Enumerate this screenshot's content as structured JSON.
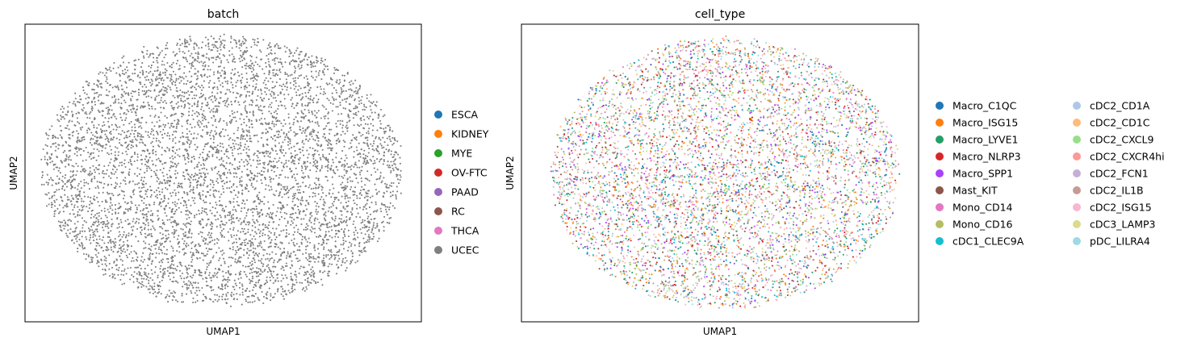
{
  "chart_data": [
    {
      "type": "scatter",
      "title": "batch",
      "xlabel": "UMAP1",
      "ylabel": "UMAP2",
      "ticks": false,
      "point_count": 6000,
      "legend_position": "right",
      "legend_columns": 1,
      "legend": [
        {
          "label": "ESCA",
          "color": "#1f77b4"
        },
        {
          "label": "KIDNEY",
          "color": "#ff7f0e"
        },
        {
          "label": "MYE",
          "color": "#2ca02c"
        },
        {
          "label": "OV-FTC",
          "color": "#d62728"
        },
        {
          "label": "PAAD",
          "color": "#9467bd"
        },
        {
          "label": "RC",
          "color": "#8c564b"
        },
        {
          "label": "THCA",
          "color": "#e377c2"
        },
        {
          "label": "UCEC",
          "color": "#7f7f7f"
        }
      ],
      "visible_point_colors": [
        "#7f7f7f"
      ]
    },
    {
      "type": "scatter",
      "title": "cell_type",
      "xlabel": "UMAP1",
      "ylabel": "UMAP2",
      "ticks": false,
      "point_count": 6000,
      "legend_position": "right",
      "legend_columns": 2,
      "legend": [
        {
          "label": "Macro_C1QC",
          "color": "#1f77b4"
        },
        {
          "label": "Macro_ISG15",
          "color": "#ff7f0e"
        },
        {
          "label": "Macro_LYVE1",
          "color": "#279e68"
        },
        {
          "label": "Macro_NLRP3",
          "color": "#d62728"
        },
        {
          "label": "Macro_SPP1",
          "color": "#aa40fc"
        },
        {
          "label": "Mast_KIT",
          "color": "#8c564b"
        },
        {
          "label": "Mono_CD14",
          "color": "#e377c2"
        },
        {
          "label": "Mono_CD16",
          "color": "#b5bd61"
        },
        {
          "label": "cDC1_CLEC9A",
          "color": "#17becf"
        },
        {
          "label": "cDC2_CD1A",
          "color": "#aec7e8"
        },
        {
          "label": "cDC2_CD1C",
          "color": "#ffbb78"
        },
        {
          "label": "cDC2_CXCL9",
          "color": "#98df8a"
        },
        {
          "label": "cDC2_CXCR4hi",
          "color": "#ff9896"
        },
        {
          "label": "cDC2_FCN1",
          "color": "#c5b0d5"
        },
        {
          "label": "cDC2_IL1B",
          "color": "#c49c94"
        },
        {
          "label": "cDC2_ISG15",
          "color": "#f7b6d2"
        },
        {
          "label": "cDC3_LAMP3",
          "color": "#dbdb8d"
        },
        {
          "label": "pDC_LILRA4",
          "color": "#9edae5"
        }
      ]
    }
  ]
}
